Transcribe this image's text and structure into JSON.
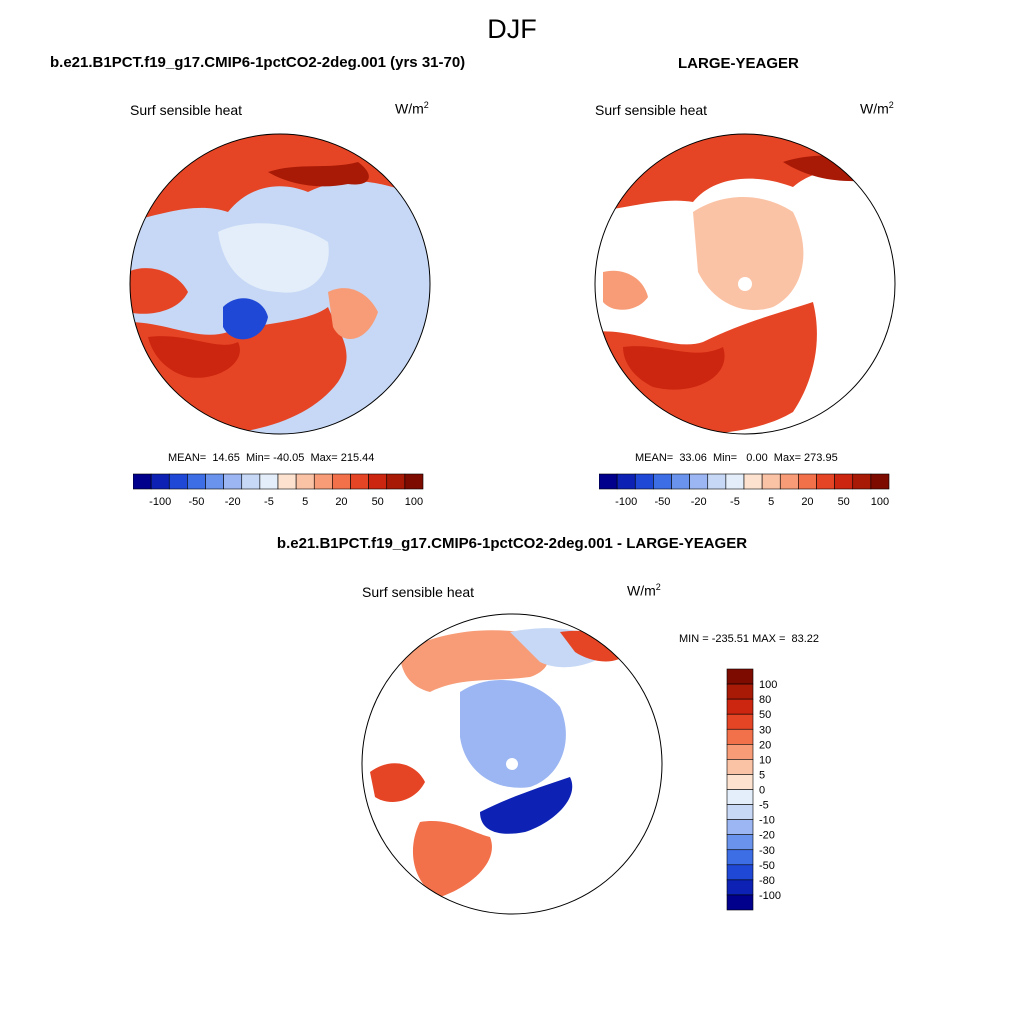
{
  "title": "DJF",
  "panels": [
    {
      "title": "b.e21.B1PCT.f19_g17.CMIP6-1pctCO2-2deg.001 (yrs 31-70)",
      "variable": "Surf sensible heat",
      "units_base": "W/m",
      "units_exp": "2",
      "stats": "MEAN=  14.65  Min= -40.05  Max= 215.44"
    },
    {
      "title": "LARGE-YEAGER",
      "variable": "Surf sensible heat",
      "units_base": "W/m",
      "units_exp": "2",
      "stats": "MEAN=  33.06  Min=   0.00  Max= 273.95"
    },
    {
      "title": "b.e21.B1PCT.f19_g17.CMIP6-1pctCO2-2deg.001 - LARGE-YEAGER",
      "variable": "Surf sensible heat",
      "units_base": "W/m",
      "units_exp": "2",
      "stats": "MIN = -235.51 MAX =  83.22"
    }
  ],
  "colorbar_horizontal": {
    "tick_labels": [
      "-100",
      "-50",
      "-20",
      "-5",
      "5",
      "20",
      "50",
      "100"
    ],
    "colors": [
      "#00008c",
      "#0d22b4",
      "#1f48d6",
      "#3d6ee6",
      "#6a93ee",
      "#9bb6f2",
      "#c6d8f5",
      "#e4eefa",
      "#fde3cf",
      "#fbc3a6",
      "#f79c76",
      "#f2714b",
      "#e64525",
      "#cc2610",
      "#a81a06",
      "#7e0b00"
    ]
  },
  "colorbar_vertical": {
    "tick_labels": [
      "100",
      "80",
      "50",
      "30",
      "20",
      "10",
      "5",
      "0",
      "-5",
      "-10",
      "-20",
      "-30",
      "-50",
      "-80",
      "-100"
    ],
    "colors": [
      "#7e0b00",
      "#a81a06",
      "#cc2610",
      "#e64525",
      "#f2714b",
      "#f79c76",
      "#fbc3a6",
      "#fde3cf",
      "#e4eefa",
      "#c6d8f5",
      "#9bb6f2",
      "#6a93ee",
      "#3d6ee6",
      "#1f48d6",
      "#0d22b4",
      "#00008c"
    ]
  }
}
